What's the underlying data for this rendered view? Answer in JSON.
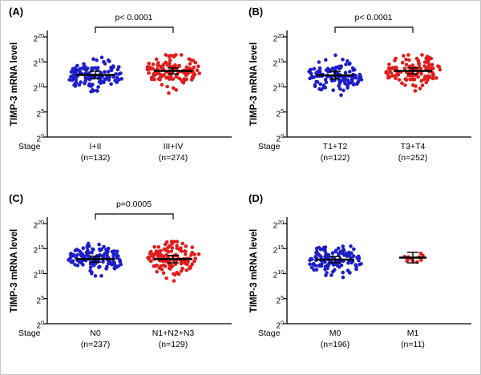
{
  "chart_data": {
    "type": "scatter",
    "title": "",
    "ylabel": "TIMP-3 mRNA level",
    "xlabel": "Stage",
    "y_base": "2",
    "y_tick_exponents": [
      "0",
      "5",
      "10",
      "15",
      "20"
    ],
    "ylim_exponents": [
      0,
      20
    ],
    "grid": "off",
    "legend": "none",
    "dot_colors": {
      "blue": "#1e1ec8",
      "red": "#e01d1d"
    },
    "mean_line_color": "#000000",
    "panels": [
      {
        "label": "(A)",
        "p_label": "p< 0.0001",
        "groups": [
          {
            "name": "I+II",
            "n_label": "(n=132)",
            "n": 132,
            "color": "blue",
            "mean_exp": 12.4,
            "sd": 1.45,
            "sem": 0.25,
            "seed": 11
          },
          {
            "name": "III+IV",
            "n_label": "(n=274)",
            "n": 274,
            "color": "red",
            "mean_exp": 13.2,
            "sd": 1.5,
            "sem": 0.2,
            "seed": 22
          }
        ]
      },
      {
        "label": "(B)",
        "p_label": "p< 0.0001",
        "groups": [
          {
            "name": "T1+T2",
            "n_label": "(n=122)",
            "n": 122,
            "color": "blue",
            "mean_exp": 12.3,
            "sd": 1.45,
            "sem": 0.25,
            "seed": 33
          },
          {
            "name": "T3+T4",
            "n_label": "(n=252)",
            "n": 252,
            "color": "red",
            "mean_exp": 13.2,
            "sd": 1.5,
            "sem": 0.2,
            "seed": 44
          }
        ]
      },
      {
        "label": "(C)",
        "p_label": "p=0.0005",
        "groups": [
          {
            "name": "N0",
            "n_label": "(n=237)",
            "n": 237,
            "color": "blue",
            "mean_exp": 12.9,
            "sd": 1.4,
            "sem": 0.2,
            "seed": 55
          },
          {
            "name": "N1+N2+N3",
            "n_label": "(n=129)",
            "n": 129,
            "color": "red",
            "mean_exp": 12.9,
            "sd": 1.5,
            "sem": 0.25,
            "seed": 66
          }
        ]
      },
      {
        "label": "(D)",
        "p_label": "",
        "groups": [
          {
            "name": "M0",
            "n_label": "(n=196)",
            "n": 196,
            "color": "blue",
            "mean_exp": 12.8,
            "sd": 1.45,
            "sem": 0.2,
            "seed": 77
          },
          {
            "name": "M1",
            "n_label": "(n=11)",
            "n": 11,
            "color": "red",
            "mean_exp": 13.2,
            "sd": 0.7,
            "sem": 0.35,
            "seed": 88
          }
        ]
      }
    ]
  }
}
